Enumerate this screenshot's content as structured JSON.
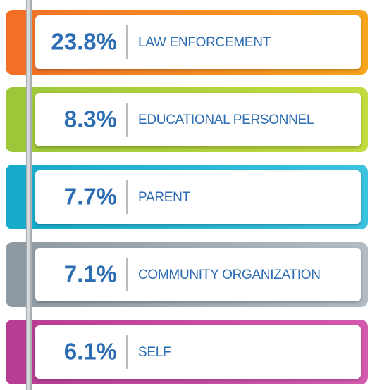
{
  "items": [
    {
      "percent": "23.8%",
      "label": "LAW ENFORCEMENT",
      "color": "#f36f27",
      "color2": "#f8a51c"
    },
    {
      "percent": "8.3%",
      "label": "EDUCATIONAL PERSONNEL",
      "color": "#9cc73a",
      "color2": "#c3dc3f"
    },
    {
      "percent": "7.7%",
      "label": "PARENT",
      "color": "#16aacb",
      "color2": "#3cc3df"
    },
    {
      "percent": "7.1%",
      "label": "COMMUNITY ORGANIZATION",
      "color": "#8e9aa3",
      "color2": "#b3bcc2"
    },
    {
      "percent": "6.1%",
      "label": "SELF",
      "color": "#b73c92",
      "color2": "#d35aae"
    }
  ]
}
